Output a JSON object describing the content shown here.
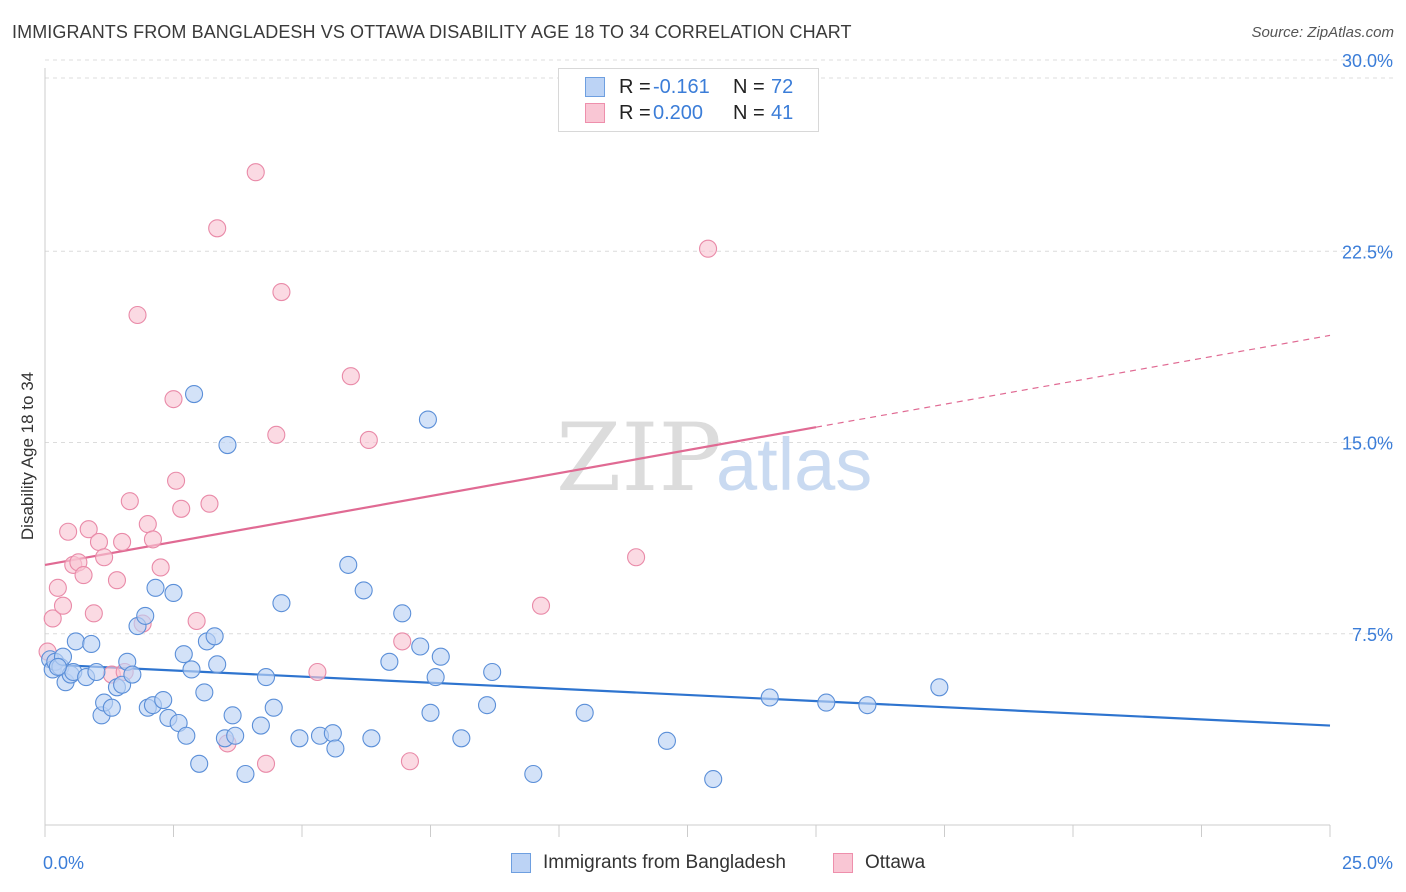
{
  "title": "IMMIGRANTS FROM BANGLADESH VS OTTAWA DISABILITY AGE 18 TO 34 CORRELATION CHART",
  "source": "Source: ZipAtlas.com",
  "watermark": {
    "zip": "ZIP",
    "atlas": "atlas"
  },
  "legend": {
    "r_label": "R =",
    "n_label": "N =",
    "rows": [
      {
        "r": "-0.161",
        "n": "72",
        "fill": "#bcd3f5",
        "stroke": "#6e9fe0"
      },
      {
        "r": "0.200",
        "n": "41",
        "fill": "#f9c6d4",
        "stroke": "#ee8fac"
      }
    ]
  },
  "colors": {
    "blue_fill": "#bcd3f5",
    "blue_stroke": "#5b8fd8",
    "blue_line": "#2e74cf",
    "pink_fill": "#f9c6d4",
    "pink_stroke": "#e98aa8",
    "pink_line": "#e06a93",
    "tick_label": "#3b7dd8",
    "grid": "#dcdcdc",
    "axis": "#cccccc"
  },
  "chart_data": {
    "type": "scatter",
    "title": "IMMIGRANTS FROM BANGLADESH VS OTTAWA DISABILITY AGE 18 TO 34 CORRELATION CHART",
    "xlabel": "",
    "ylabel": "Disability Age 18 to 34",
    "xlim": [
      0,
      25
    ],
    "ylim": [
      0,
      31
    ],
    "x_tick_labels": [
      "0.0%",
      "25.0%"
    ],
    "y_ticks": [
      7.5,
      15.0,
      22.5,
      30.0
    ],
    "y_tick_labels": [
      "7.5%",
      "15.0%",
      "22.5%",
      "30.0%"
    ],
    "grid": true,
    "legend_position": "top-center",
    "series": [
      {
        "name": "Immigrants from Bangladesh",
        "color": "#5b8fd8",
        "trend": {
          "x": [
            0,
            25
          ],
          "y": [
            6.3,
            3.9
          ]
        },
        "points": [
          [
            0.1,
            6.5
          ],
          [
            0.15,
            6.1
          ],
          [
            0.2,
            6.4
          ],
          [
            0.3,
            6.2
          ],
          [
            0.35,
            6.6
          ],
          [
            0.4,
            5.6
          ],
          [
            0.5,
            5.9
          ],
          [
            0.55,
            6.0
          ],
          [
            0.6,
            7.2
          ],
          [
            0.8,
            5.8
          ],
          [
            0.9,
            7.1
          ],
          [
            1.0,
            6.0
          ],
          [
            1.1,
            4.3
          ],
          [
            1.15,
            4.8
          ],
          [
            1.3,
            4.6
          ],
          [
            1.4,
            5.4
          ],
          [
            1.5,
            5.5
          ],
          [
            1.6,
            6.4
          ],
          [
            1.7,
            5.9
          ],
          [
            1.8,
            7.8
          ],
          [
            1.95,
            8.2
          ],
          [
            2.0,
            4.6
          ],
          [
            2.1,
            4.7
          ],
          [
            2.15,
            9.3
          ],
          [
            2.3,
            4.9
          ],
          [
            2.4,
            4.2
          ],
          [
            2.5,
            9.1
          ],
          [
            2.6,
            4.0
          ],
          [
            2.7,
            6.7
          ],
          [
            2.75,
            3.5
          ],
          [
            2.85,
            6.1
          ],
          [
            2.9,
            16.9
          ],
          [
            3.0,
            2.4
          ],
          [
            3.1,
            5.2
          ],
          [
            3.15,
            7.2
          ],
          [
            3.3,
            7.4
          ],
          [
            3.35,
            6.3
          ],
          [
            3.5,
            3.4
          ],
          [
            3.55,
            14.9
          ],
          [
            3.65,
            4.3
          ],
          [
            3.7,
            3.5
          ],
          [
            3.9,
            2.0
          ],
          [
            4.2,
            3.9
          ],
          [
            4.3,
            5.8
          ],
          [
            4.45,
            4.6
          ],
          [
            4.6,
            8.7
          ],
          [
            4.95,
            3.4
          ],
          [
            5.35,
            3.5
          ],
          [
            5.6,
            3.6
          ],
          [
            5.65,
            3.0
          ],
          [
            5.9,
            10.2
          ],
          [
            6.2,
            9.2
          ],
          [
            6.35,
            3.4
          ],
          [
            6.7,
            6.4
          ],
          [
            6.95,
            8.3
          ],
          [
            7.3,
            7.0
          ],
          [
            7.45,
            15.9
          ],
          [
            7.5,
            4.4
          ],
          [
            7.6,
            5.8
          ],
          [
            7.7,
            6.6
          ],
          [
            8.1,
            3.4
          ],
          [
            8.6,
            4.7
          ],
          [
            8.7,
            6.0
          ],
          [
            9.5,
            2.0
          ],
          [
            10.5,
            4.4
          ],
          [
            12.1,
            3.3
          ],
          [
            13.0,
            1.8
          ],
          [
            14.1,
            5.0
          ],
          [
            15.2,
            4.8
          ],
          [
            16.0,
            4.7
          ],
          [
            17.4,
            5.4
          ],
          [
            0.25,
            6.2
          ]
        ]
      },
      {
        "name": "Ottawa",
        "color": "#e98aa8",
        "trend": {
          "x": [
            0,
            15
          ],
          "y": [
            10.2,
            15.6
          ]
        },
        "trend_dashed": {
          "x": [
            15,
            25
          ],
          "y": [
            15.6,
            19.2
          ]
        },
        "points": [
          [
            0.05,
            6.8
          ],
          [
            0.15,
            8.1
          ],
          [
            0.25,
            9.3
          ],
          [
            0.35,
            8.6
          ],
          [
            0.45,
            11.5
          ],
          [
            0.55,
            10.2
          ],
          [
            0.65,
            10.3
          ],
          [
            0.75,
            9.8
          ],
          [
            0.85,
            11.6
          ],
          [
            0.95,
            8.3
          ],
          [
            1.05,
            11.1
          ],
          [
            1.15,
            10.5
          ],
          [
            1.3,
            5.9
          ],
          [
            1.4,
            9.6
          ],
          [
            1.5,
            11.1
          ],
          [
            1.55,
            6.0
          ],
          [
            1.65,
            12.7
          ],
          [
            1.8,
            20.0
          ],
          [
            1.9,
            7.9
          ],
          [
            2.0,
            11.8
          ],
          [
            2.1,
            11.2
          ],
          [
            2.25,
            10.1
          ],
          [
            2.5,
            16.7
          ],
          [
            2.55,
            13.5
          ],
          [
            2.65,
            12.4
          ],
          [
            2.95,
            8.0
          ],
          [
            3.2,
            12.6
          ],
          [
            3.35,
            23.4
          ],
          [
            3.55,
            3.2
          ],
          [
            4.1,
            25.6
          ],
          [
            4.3,
            2.4
          ],
          [
            4.5,
            15.3
          ],
          [
            4.6,
            20.9
          ],
          [
            5.3,
            6.0
          ],
          [
            5.95,
            17.6
          ],
          [
            6.3,
            15.1
          ],
          [
            6.95,
            7.2
          ],
          [
            7.1,
            2.5
          ],
          [
            9.65,
            8.6
          ],
          [
            11.5,
            10.5
          ],
          [
            12.9,
            22.6
          ]
        ]
      }
    ]
  }
}
